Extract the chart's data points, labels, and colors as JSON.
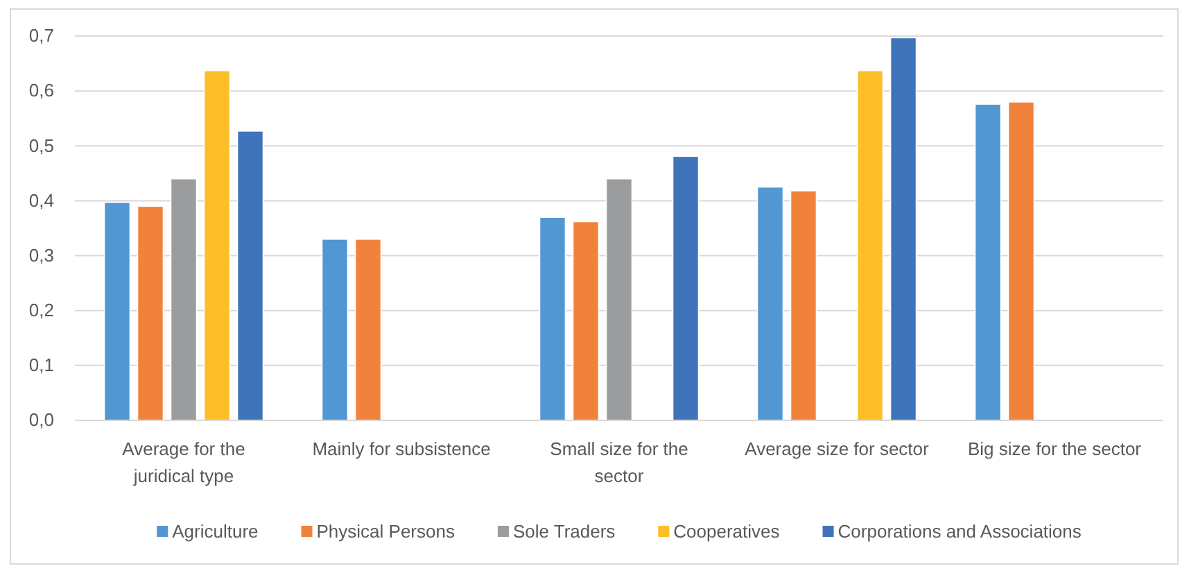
{
  "chart_data": {
    "type": "bar",
    "categories": [
      "Average for the juridical type",
      "Mainly for subsistence",
      "Small size for the sector",
      "Average size for sector",
      "Big size for the sector"
    ],
    "series": [
      {
        "name": "Agriculture",
        "color": "#5197d3",
        "values": [
          0.397,
          0.33,
          0.37,
          0.425,
          0.576
        ]
      },
      {
        "name": "Physical Persons",
        "color": "#f1823b",
        "values": [
          0.39,
          0.33,
          0.362,
          0.418,
          0.58
        ]
      },
      {
        "name": "Sole Traders",
        "color": "#9a9c9d",
        "values": [
          0.44,
          null,
          0.44,
          null,
          null
        ]
      },
      {
        "name": "Cooperatives",
        "color": "#fdbe27",
        "values": [
          0.637,
          null,
          null,
          0.637,
          null
        ]
      },
      {
        "name": "Corporations and Associations",
        "color": "#3f73ba",
        "values": [
          0.527,
          null,
          0.481,
          0.697,
          null
        ]
      }
    ],
    "ylim": [
      0,
      0.7
    ],
    "yticks": [
      {
        "value": 0,
        "label": "0,0"
      },
      {
        "value": 0.1,
        "label": "0,1"
      },
      {
        "value": 0.2,
        "label": "0,2"
      },
      {
        "value": 0.3,
        "label": "0,3"
      },
      {
        "value": 0.4,
        "label": "0,4"
      },
      {
        "value": 0.5,
        "label": "0,5"
      },
      {
        "value": 0.6,
        "label": "0,6"
      },
      {
        "value": 0.7,
        "label": "0,7"
      }
    ],
    "grid": "y",
    "legend": "bottom"
  }
}
